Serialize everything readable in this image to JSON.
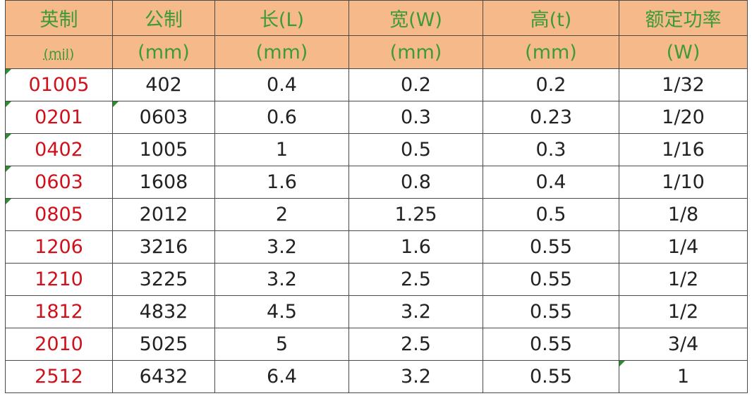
{
  "table": {
    "header": [
      [
        "英制",
        "公制",
        "长(L)",
        "宽(W)",
        "高(t)",
        "额定功率"
      ],
      [
        "(mil)",
        "(mm)",
        "(mm)",
        "(mm)",
        "(mm)",
        "(W)"
      ]
    ],
    "rows": [
      [
        "01005",
        "402",
        "0.4",
        "0.2",
        "0.2",
        "1/32"
      ],
      [
        "0201",
        "0603",
        "0.6",
        "0.3",
        "0.23",
        "1/20"
      ],
      [
        "0402",
        "1005",
        "1",
        "0.5",
        "0.3",
        "1/16"
      ],
      [
        "0603",
        "1608",
        "1.6",
        "0.8",
        "0.4",
        "1/10"
      ],
      [
        "0805",
        "2012",
        "2",
        "1.25",
        "0.5",
        "1/8"
      ],
      [
        "1206",
        "3216",
        "3.2",
        "1.6",
        "0.55",
        "1/4"
      ],
      [
        "1210",
        "3225",
        "3.2",
        "2.5",
        "0.55",
        "1/2"
      ],
      [
        "1812",
        "4832",
        "4.5",
        "3.2",
        "0.55",
        "1/2"
      ],
      [
        "2010",
        "5025",
        "5",
        "2.5",
        "0.55",
        "3/4"
      ],
      [
        "2512",
        "6432",
        "6.4",
        "3.2",
        "0.55",
        "1"
      ]
    ]
  }
}
